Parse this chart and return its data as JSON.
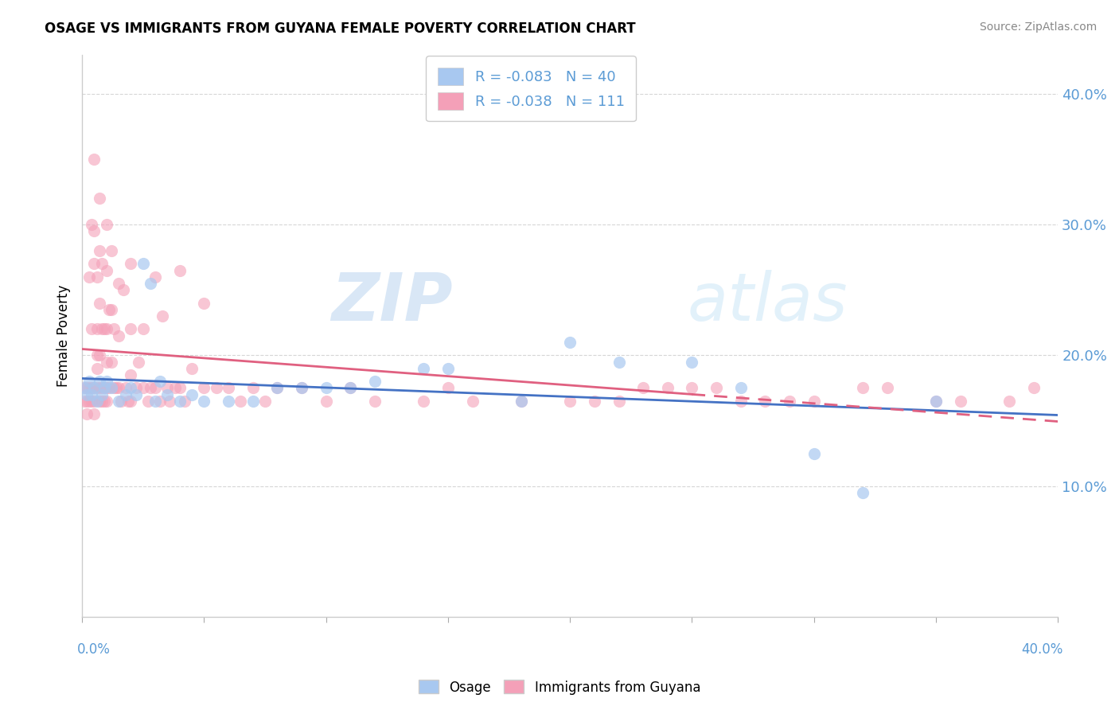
{
  "title": "OSAGE VS IMMIGRANTS FROM GUYANA FEMALE POVERTY CORRELATION CHART",
  "source": "Source: ZipAtlas.com",
  "ylabel": "Female Poverty",
  "osage_R": -0.083,
  "osage_N": 40,
  "guyana_R": -0.038,
  "guyana_N": 111,
  "osage_color": "#a8c8f0",
  "guyana_color": "#f4a0b8",
  "osage_line_color": "#4472c4",
  "guyana_line_color": "#e06080",
  "axis_label_color": "#5b9bd5",
  "xlim": [
    0.0,
    0.4
  ],
  "ylim": [
    0.0,
    0.43
  ],
  "yticks": [
    0.1,
    0.2,
    0.3,
    0.4
  ],
  "ytick_labels": [
    "10.0%",
    "20.0%",
    "30.0%",
    "40.0%"
  ],
  "osage_x": [
    0.001,
    0.002,
    0.003,
    0.004,
    0.005,
    0.006,
    0.007,
    0.008,
    0.009,
    0.01,
    0.012,
    0.015,
    0.018,
    0.02,
    0.022,
    0.025,
    0.028,
    0.03,
    0.032,
    0.035,
    0.04,
    0.045,
    0.05,
    0.06,
    0.07,
    0.08,
    0.09,
    0.1,
    0.11,
    0.12,
    0.14,
    0.15,
    0.18,
    0.2,
    0.22,
    0.25,
    0.27,
    0.3,
    0.32,
    0.35
  ],
  "osage_y": [
    0.175,
    0.17,
    0.18,
    0.17,
    0.175,
    0.165,
    0.18,
    0.17,
    0.175,
    0.18,
    0.175,
    0.165,
    0.17,
    0.175,
    0.17,
    0.27,
    0.255,
    0.165,
    0.18,
    0.17,
    0.165,
    0.17,
    0.165,
    0.165,
    0.165,
    0.175,
    0.175,
    0.175,
    0.175,
    0.18,
    0.19,
    0.19,
    0.165,
    0.21,
    0.195,
    0.195,
    0.175,
    0.125,
    0.095,
    0.165
  ],
  "guyana_x": [
    0.001,
    0.001,
    0.002,
    0.002,
    0.002,
    0.003,
    0.003,
    0.003,
    0.004,
    0.004,
    0.004,
    0.004,
    0.005,
    0.005,
    0.005,
    0.005,
    0.005,
    0.005,
    0.006,
    0.006,
    0.006,
    0.006,
    0.006,
    0.007,
    0.007,
    0.007,
    0.007,
    0.007,
    0.007,
    0.008,
    0.008,
    0.008,
    0.008,
    0.009,
    0.009,
    0.009,
    0.01,
    0.01,
    0.01,
    0.01,
    0.01,
    0.01,
    0.011,
    0.011,
    0.012,
    0.012,
    0.012,
    0.013,
    0.013,
    0.014,
    0.015,
    0.015,
    0.015,
    0.016,
    0.017,
    0.018,
    0.019,
    0.02,
    0.02,
    0.02,
    0.02,
    0.022,
    0.023,
    0.025,
    0.025,
    0.027,
    0.028,
    0.03,
    0.03,
    0.032,
    0.033,
    0.035,
    0.036,
    0.038,
    0.04,
    0.04,
    0.042,
    0.045,
    0.05,
    0.05,
    0.055,
    0.06,
    0.065,
    0.07,
    0.075,
    0.08,
    0.09,
    0.1,
    0.11,
    0.12,
    0.14,
    0.15,
    0.16,
    0.18,
    0.2,
    0.22,
    0.25,
    0.27,
    0.3,
    0.32,
    0.33,
    0.35,
    0.36,
    0.38,
    0.39,
    0.28,
    0.29,
    0.24,
    0.26,
    0.23,
    0.21
  ],
  "guyana_y": [
    0.175,
    0.165,
    0.175,
    0.165,
    0.155,
    0.26,
    0.175,
    0.165,
    0.3,
    0.22,
    0.175,
    0.165,
    0.35,
    0.295,
    0.27,
    0.175,
    0.165,
    0.155,
    0.26,
    0.22,
    0.2,
    0.19,
    0.175,
    0.32,
    0.28,
    0.24,
    0.2,
    0.175,
    0.165,
    0.27,
    0.22,
    0.175,
    0.165,
    0.22,
    0.175,
    0.165,
    0.3,
    0.265,
    0.22,
    0.195,
    0.175,
    0.165,
    0.235,
    0.175,
    0.28,
    0.235,
    0.195,
    0.22,
    0.175,
    0.175,
    0.255,
    0.215,
    0.175,
    0.165,
    0.25,
    0.175,
    0.165,
    0.27,
    0.22,
    0.185,
    0.165,
    0.175,
    0.195,
    0.22,
    0.175,
    0.165,
    0.175,
    0.26,
    0.175,
    0.165,
    0.23,
    0.175,
    0.165,
    0.175,
    0.265,
    0.175,
    0.165,
    0.19,
    0.24,
    0.175,
    0.175,
    0.175,
    0.165,
    0.175,
    0.165,
    0.175,
    0.175,
    0.165,
    0.175,
    0.165,
    0.165,
    0.175,
    0.165,
    0.165,
    0.165,
    0.165,
    0.175,
    0.165,
    0.165,
    0.175,
    0.175,
    0.165,
    0.165,
    0.165,
    0.175,
    0.165,
    0.165,
    0.175,
    0.175,
    0.175,
    0.165
  ]
}
